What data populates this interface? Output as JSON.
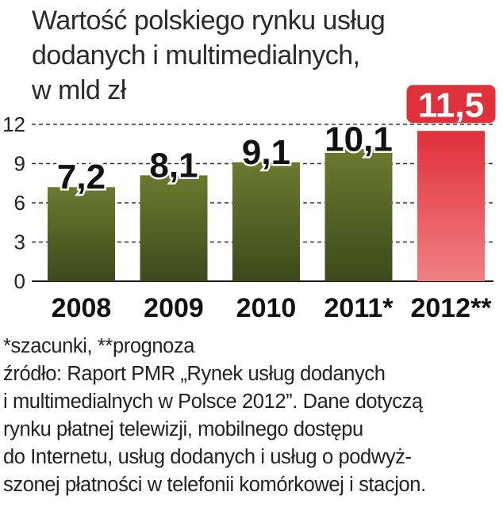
{
  "title_lines": [
    "Wartość polskiego rynku usług",
    "dodanych i multimedialnych,",
    "w mld zł"
  ],
  "chart_data": {
    "type": "bar",
    "categories": [
      "2008",
      "2009",
      "2010",
      "2011*",
      "2012**"
    ],
    "values": [
      7.2,
      8.1,
      9.1,
      10.1,
      11.5
    ],
    "value_labels": [
      "7,2",
      "8,1",
      "9,1",
      "10,1",
      "11,5"
    ],
    "yticks": [
      "0",
      "3",
      "6",
      "9",
      "12"
    ],
    "ylim": [
      0,
      12
    ],
    "grid": "dashed horizontal",
    "colors": {
      "actual": "#6b7a2e",
      "forecast": "#e0303c",
      "forecast_label_bg": "#e0303c"
    },
    "highlighted_index": 4
  },
  "notes": {
    "legend": "*szacunki, **prognoza",
    "source_lines": [
      "źródło: Raport PMR „Rynek usług dodanych",
      "i multimedialnych w Polsce 2012”. Dane dotyczą",
      "rynku płatnej telewizji, mobilnego dostępu",
      "do Internetu, usług dodanych i usług o podwyż-",
      "szonej płatności w telefonii komórkowej i stacjon."
    ]
  }
}
